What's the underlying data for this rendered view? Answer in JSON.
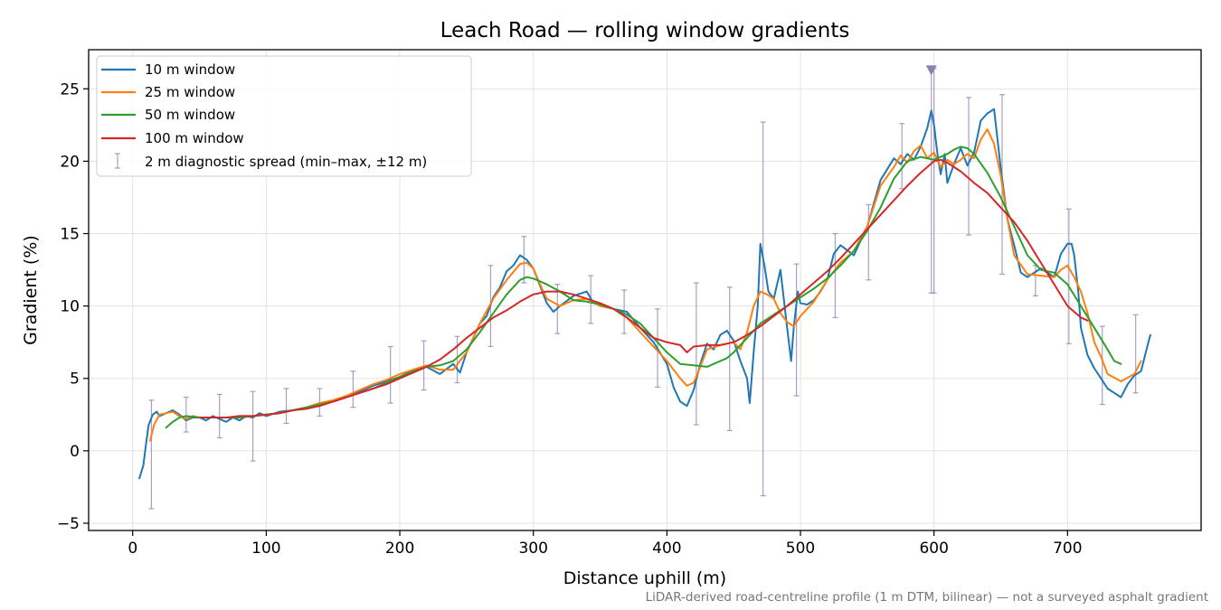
{
  "chart_data": {
    "type": "line",
    "title": "Leach Road — rolling window gradients",
    "xlabel": "Distance uphill (m)",
    "ylabel": "Gradient (%)",
    "xlim": [
      -33,
      800
    ],
    "ylim": [
      -5.5,
      27.7
    ],
    "x_ticks": [
      0,
      100,
      200,
      300,
      400,
      500,
      600,
      700
    ],
    "y_ticks": [
      -5,
      0,
      5,
      10,
      15,
      20,
      25
    ],
    "grid": true,
    "legend_position": "upper left",
    "footnote": "LiDAR-derived road-centreline profile (1 m DTM, bilinear) — not a surveyed asphalt gradient",
    "series": [
      {
        "name": "10 m window",
        "color": "#1f77b4",
        "x": [
          5,
          8,
          10,
          12,
          15,
          18,
          20,
          25,
          30,
          35,
          40,
          45,
          50,
          55,
          60,
          65,
          70,
          75,
          80,
          85,
          90,
          95,
          100,
          110,
          120,
          130,
          140,
          150,
          160,
          170,
          180,
          190,
          200,
          210,
          220,
          230,
          240,
          245,
          250,
          260,
          265,
          270,
          275,
          280,
          285,
          290,
          295,
          300,
          305,
          310,
          315,
          320,
          330,
          340,
          345,
          350,
          360,
          370,
          380,
          390,
          400,
          405,
          410,
          415,
          420,
          425,
          430,
          435,
          440,
          445,
          450,
          455,
          460,
          462,
          465,
          468,
          470,
          473,
          476,
          480,
          485,
          490,
          493,
          495,
          498,
          500,
          505,
          510,
          515,
          520,
          525,
          530,
          540,
          550,
          560,
          570,
          575,
          580,
          585,
          590,
          595,
          598,
          600,
          603,
          605,
          608,
          610,
          615,
          620,
          625,
          630,
          635,
          640,
          645,
          650,
          655,
          660,
          665,
          670,
          680,
          690,
          695,
          700,
          703,
          705,
          708,
          710,
          715,
          720,
          725,
          730,
          735,
          740,
          745,
          750,
          755,
          760,
          762
        ],
        "y": [
          -1.9,
          -1.0,
          0.5,
          1.8,
          2.5,
          2.7,
          2.4,
          2.6,
          2.8,
          2.5,
          2.1,
          2.3,
          2.3,
          2.1,
          2.4,
          2.2,
          2.0,
          2.3,
          2.1,
          2.4,
          2.3,
          2.6,
          2.4,
          2.7,
          2.8,
          3.0,
          3.2,
          3.4,
          3.7,
          4.1,
          4.5,
          4.8,
          5.1,
          5.6,
          5.8,
          5.3,
          6.0,
          5.4,
          6.8,
          8.8,
          9.3,
          10.6,
          11.3,
          12.4,
          12.8,
          13.5,
          13.2,
          12.6,
          11.4,
          10.2,
          9.6,
          10.0,
          10.7,
          11.0,
          10.2,
          10.1,
          9.8,
          9.6,
          8.5,
          7.5,
          6.0,
          4.4,
          3.4,
          3.1,
          4.2,
          6.0,
          7.4,
          7.0,
          8.0,
          8.3,
          7.6,
          6.2,
          5.0,
          3.3,
          6.8,
          10.0,
          14.3,
          12.8,
          11.0,
          10.5,
          12.5,
          8.5,
          6.2,
          8.5,
          11.0,
          10.2,
          10.1,
          10.4,
          11.0,
          11.8,
          13.6,
          14.2,
          13.5,
          15.5,
          18.7,
          20.2,
          19.8,
          20.5,
          20.1,
          21.0,
          22.3,
          23.5,
          22.5,
          20.2,
          19.1,
          20.5,
          18.5,
          19.8,
          20.9,
          19.7,
          20.6,
          22.8,
          23.3,
          23.6,
          19.5,
          16.0,
          14.2,
          12.3,
          12.0,
          12.6,
          12.0,
          13.6,
          14.3,
          14.3,
          13.5,
          11.0,
          8.5,
          6.6,
          5.7,
          5.0,
          4.3,
          4.0,
          3.7,
          4.6,
          5.2,
          5.5,
          7.3,
          8.0
        ]
      },
      {
        "name": "25 m window",
        "color": "#ff7f0e",
        "x": [
          13,
          16,
          20,
          25,
          30,
          35,
          40,
          45,
          50,
          60,
          70,
          80,
          90,
          100,
          110,
          120,
          130,
          140,
          150,
          160,
          170,
          180,
          190,
          200,
          210,
          220,
          230,
          240,
          250,
          260,
          270,
          280,
          290,
          295,
          300,
          305,
          310,
          320,
          330,
          340,
          350,
          360,
          370,
          380,
          390,
          400,
          410,
          415,
          420,
          425,
          430,
          440,
          450,
          455,
          460,
          465,
          470,
          475,
          480,
          485,
          490,
          495,
          500,
          510,
          520,
          530,
          540,
          550,
          560,
          570,
          575,
          580,
          585,
          590,
          595,
          600,
          605,
          610,
          615,
          620,
          625,
          630,
          635,
          640,
          645,
          650,
          655,
          660,
          670,
          680,
          690,
          695,
          700,
          705,
          710,
          715,
          720,
          725,
          730,
          740,
          750,
          755
        ],
        "y": [
          0.7,
          1.8,
          2.5,
          2.6,
          2.7,
          2.4,
          2.2,
          2.4,
          2.3,
          2.3,
          2.3,
          2.4,
          2.4,
          2.5,
          2.6,
          2.8,
          3.0,
          3.3,
          3.5,
          3.8,
          4.2,
          4.6,
          4.9,
          5.3,
          5.6,
          5.9,
          5.6,
          5.6,
          6.8,
          8.8,
          10.5,
          11.8,
          12.9,
          13.0,
          12.6,
          11.5,
          10.5,
          10.0,
          10.4,
          10.5,
          10.0,
          9.8,
          9.2,
          8.2,
          7.2,
          6.2,
          5.0,
          4.5,
          4.7,
          5.8,
          7.0,
          7.3,
          7.5,
          7.0,
          8.2,
          10.0,
          11.0,
          10.8,
          10.5,
          9.5,
          8.9,
          8.6,
          9.3,
          10.3,
          11.8,
          13.0,
          13.8,
          15.5,
          18.3,
          19.6,
          20.4,
          19.9,
          20.7,
          21.1,
          20.2,
          20.6,
          19.6,
          20.1,
          19.8,
          20.1,
          20.5,
          20.2,
          21.5,
          22.2,
          21.2,
          19.0,
          16.0,
          13.5,
          12.2,
          12.1,
          12.0,
          12.5,
          12.8,
          12.0,
          11.0,
          9.5,
          7.5,
          6.5,
          5.3,
          4.8,
          5.3,
          6.2
        ]
      },
      {
        "name": "50 m window",
        "color": "#2ca02c",
        "x": [
          25,
          30,
          35,
          40,
          50,
          60,
          70,
          80,
          90,
          100,
          110,
          120,
          130,
          140,
          150,
          160,
          170,
          180,
          190,
          200,
          210,
          220,
          230,
          240,
          250,
          260,
          270,
          280,
          290,
          295,
          300,
          310,
          320,
          330,
          340,
          350,
          360,
          370,
          380,
          390,
          400,
          410,
          420,
          430,
          440,
          445,
          450,
          460,
          470,
          480,
          490,
          500,
          510,
          520,
          530,
          540,
          550,
          560,
          570,
          580,
          590,
          600,
          610,
          615,
          620,
          625,
          630,
          640,
          650,
          660,
          670,
          680,
          690,
          700,
          710,
          720,
          730,
          735,
          740
        ],
        "y": [
          1.6,
          2.0,
          2.3,
          2.4,
          2.3,
          2.3,
          2.3,
          2.3,
          2.4,
          2.5,
          2.6,
          2.8,
          3.0,
          3.2,
          3.4,
          3.7,
          4.0,
          4.3,
          4.7,
          5.1,
          5.5,
          5.8,
          5.9,
          6.2,
          7.0,
          8.2,
          9.5,
          10.8,
          11.8,
          12.0,
          11.9,
          11.5,
          11.0,
          10.4,
          10.3,
          10.1,
          9.8,
          9.4,
          8.8,
          7.8,
          6.8,
          6.0,
          5.9,
          5.8,
          6.2,
          6.4,
          6.8,
          7.8,
          8.8,
          9.4,
          10.0,
          10.6,
          11.2,
          11.9,
          12.8,
          13.8,
          15.2,
          16.8,
          18.8,
          20.0,
          20.3,
          20.1,
          20.5,
          20.8,
          21.0,
          20.9,
          20.5,
          19.2,
          17.5,
          15.5,
          13.5,
          12.5,
          12.3,
          11.5,
          10.0,
          8.5,
          7.0,
          6.2,
          6.0
        ]
      },
      {
        "name": "100 m window",
        "color": "#d62728",
        "x": [
          50,
          60,
          70,
          80,
          90,
          100,
          110,
          120,
          130,
          140,
          150,
          160,
          170,
          180,
          190,
          200,
          210,
          220,
          230,
          240,
          250,
          260,
          270,
          280,
          290,
          300,
          310,
          320,
          330,
          340,
          350,
          360,
          370,
          380,
          390,
          400,
          410,
          415,
          420,
          430,
          440,
          450,
          460,
          470,
          480,
          490,
          500,
          510,
          520,
          530,
          540,
          550,
          560,
          570,
          580,
          590,
          600,
          605,
          610,
          620,
          630,
          640,
          650,
          660,
          670,
          680,
          690,
          700,
          710,
          715
        ],
        "y": [
          2.3,
          2.3,
          2.3,
          2.4,
          2.4,
          2.5,
          2.6,
          2.8,
          2.9,
          3.1,
          3.4,
          3.7,
          4.0,
          4.3,
          4.6,
          5.0,
          5.4,
          5.8,
          6.3,
          7.0,
          7.8,
          8.5,
          9.2,
          9.7,
          10.3,
          10.8,
          11.0,
          11.0,
          10.8,
          10.5,
          10.2,
          9.8,
          9.2,
          8.5,
          7.8,
          7.5,
          7.3,
          6.8,
          7.2,
          7.3,
          7.3,
          7.5,
          8.0,
          8.6,
          9.3,
          10.0,
          10.8,
          11.6,
          12.4,
          13.3,
          14.3,
          15.3,
          16.3,
          17.3,
          18.3,
          19.2,
          20.0,
          20.1,
          19.9,
          19.3,
          18.5,
          17.8,
          16.8,
          15.8,
          14.5,
          13.0,
          11.5,
          10.0,
          9.2,
          9.0
        ]
      }
    ],
    "errorbars": {
      "name": "2 m diagnostic spread (min–max, ±12 m)",
      "color": "#8c7fb0",
      "x": [
        14,
        40,
        65,
        90,
        115,
        140,
        165,
        193,
        218,
        243,
        268,
        293,
        318,
        343,
        368,
        393,
        422,
        447,
        472,
        497,
        526,
        551,
        576,
        598,
        600,
        626,
        651,
        676,
        701,
        726,
        751
      ],
      "low": [
        -4.0,
        1.3,
        0.9,
        -0.7,
        1.9,
        2.4,
        3.0,
        3.3,
        4.2,
        4.7,
        7.2,
        11.6,
        8.1,
        8.8,
        8.1,
        4.4,
        1.8,
        1.4,
        -3.1,
        3.8,
        9.2,
        11.8,
        18.1,
        10.9,
        10.9,
        14.9,
        12.2,
        10.7,
        7.4,
        3.2,
        4.0
      ],
      "high": [
        3.5,
        3.7,
        3.9,
        4.1,
        4.3,
        4.3,
        5.5,
        7.2,
        7.6,
        7.9,
        12.8,
        14.8,
        11.5,
        12.1,
        11.1,
        9.8,
        11.6,
        11.3,
        22.7,
        12.9,
        15.0,
        17.0,
        22.6,
        26.3,
        26.4,
        24.4,
        24.6,
        12.8,
        16.7,
        8.6,
        9.4
      ]
    },
    "marker": {
      "shape": "triangle-down",
      "x": 598,
      "y": 26.3,
      "color": "#8c7fb0"
    }
  }
}
